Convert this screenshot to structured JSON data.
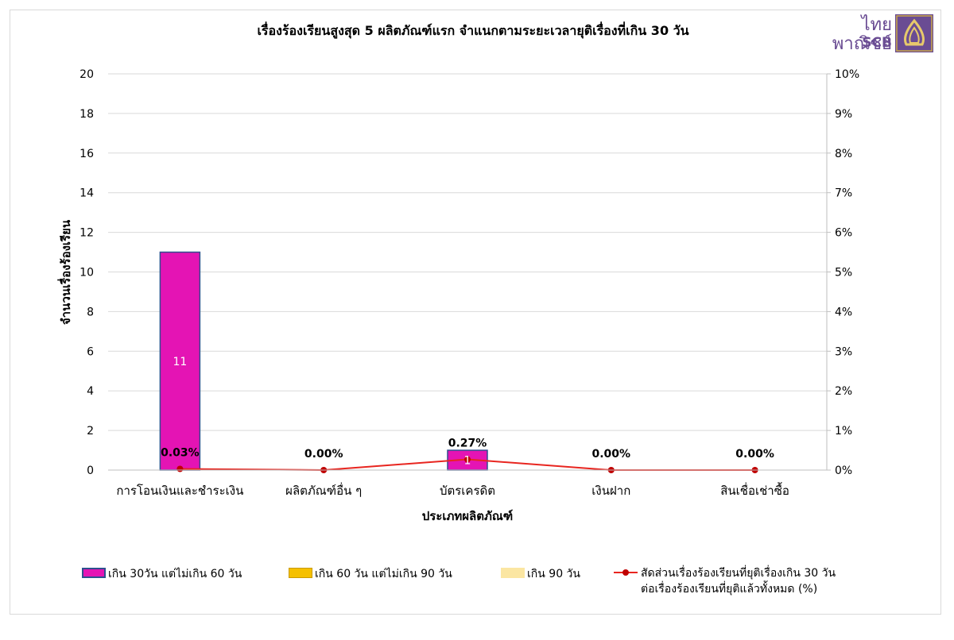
{
  "logo": {
    "text": "ไทยพาณิชย์",
    "sub": "SCB"
  },
  "chart_data": {
    "type": "bar",
    "title": "เรื่องร้องเรียนสูงสุด 5 ผลิตภัณฑ์แรก จำแนกตามระยะเวลายุติเรื่องที่เกิน 30 วัน",
    "xlabel": "ประเภทผลิตภัณฑ์",
    "ylabel": "จำนวนเรื่องร้องเรียน",
    "ylim": [
      0,
      20
    ],
    "y_ticks": [
      0,
      2,
      4,
      6,
      8,
      10,
      12,
      14,
      16,
      18,
      20
    ],
    "y2lim": [
      0,
      10
    ],
    "y2_ticks": [
      "0%",
      "1%",
      "2%",
      "3%",
      "4%",
      "5%",
      "6%",
      "7%",
      "8%",
      "9%",
      "10%"
    ],
    "grid": true,
    "legend_position": "bottom",
    "categories": [
      "การโอนเงินและชำระเงิน",
      "ผลิตภัณฑ์อื่น ๆ",
      "บัตรเครดิต",
      "เงินฝาก",
      "สินเชื่อเช่าซื้อ"
    ],
    "series": [
      {
        "name": "เกิน 30วัน แต่ไม่เกิน 60 วัน",
        "kind": "bar",
        "axis": "left",
        "color": "#e414b4",
        "border": "#2e4f8f",
        "values": [
          11,
          0,
          1,
          0,
          0
        ],
        "labels": [
          "11",
          "",
          "1",
          "",
          ""
        ]
      },
      {
        "name": "เกิน 60 วัน แต่ไม่เกิน 90 วัน",
        "kind": "bar",
        "axis": "left",
        "color": "#f5c000",
        "border": "#c99a00",
        "values": [
          0,
          0,
          0,
          0,
          0
        ]
      },
      {
        "name": "เกิน 90 วัน",
        "kind": "bar",
        "axis": "left",
        "color": "#fbe6a2",
        "border": "#fbe6a2",
        "values": [
          0,
          0,
          0,
          0,
          0
        ]
      },
      {
        "name": "สัดส่วนเรื่องร้องเรียนที่ยุติเรื่องเกิน 30 วัน ต่อเรื่องร้องเรียนที่ยุติแล้วทั้งหมด (%)",
        "name_lines": [
          "สัดส่วนเรื่องร้องเรียนที่ยุติเรื่องเกิน 30 วัน",
          "ต่อเรื่องร้องเรียนที่ยุติแล้วทั้งหมด (%)"
        ],
        "kind": "line",
        "axis": "right",
        "color": "#e8251f",
        "marker_color": "#c00000",
        "values": [
          0.03,
          0.0,
          0.27,
          0.0,
          0.0
        ],
        "labels": [
          "0.03%",
          "0.00%",
          "0.27%",
          "0.00%",
          "0.00%"
        ]
      }
    ]
  }
}
